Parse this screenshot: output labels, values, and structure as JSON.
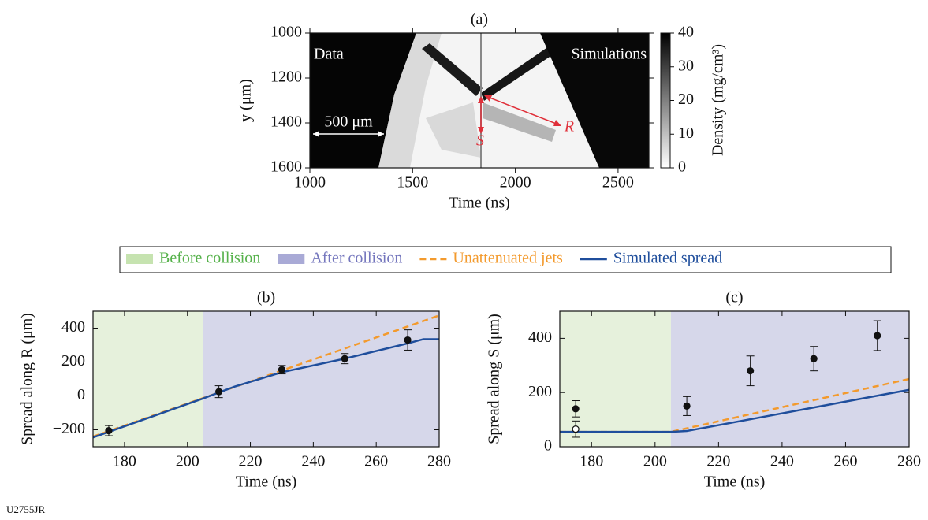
{
  "chart_data": [
    {
      "type": "image",
      "title": "(a)",
      "xlabel": "Time (ns)",
      "ylabel": "y (μm)",
      "xlim": [
        1000,
        2650
      ],
      "xticks": [
        1000,
        1500,
        2000,
        2500
      ],
      "ylim": [
        1600,
        1000
      ],
      "yticks": [
        1000,
        1200,
        1400,
        1600
      ],
      "colorbar": {
        "label": "Density (mg/cm³)",
        "lim": [
          0,
          40
        ],
        "ticks": [
          0,
          10,
          20,
          30,
          40
        ]
      },
      "annotations": [
        "Data",
        "Simulations",
        "500 μm",
        "S",
        "R"
      ]
    },
    {
      "type": "line",
      "title": "(b)",
      "xlabel": "Time (ns)",
      "ylabel": "Spread along R (μm)",
      "xlim": [
        170,
        280
      ],
      "xticks": [
        180,
        200,
        220,
        240,
        260,
        280
      ],
      "ylim": [
        -300,
        500
      ],
      "yticks": [
        {
          "value": -200,
          "label": "−200"
        },
        0,
        200,
        400
      ],
      "regions": [
        {
          "name": "Before collision",
          "from": 170,
          "to": 205,
          "color": "#e6f1dc",
          "swatch": "#c6e3b0",
          "label_color": "#55b14a"
        },
        {
          "name": "After collision",
          "from": 205,
          "to": 280,
          "color": "#d6d7ea",
          "swatch": "#a9aad6",
          "label_color": "#7476bd"
        }
      ],
      "series": [
        {
          "name": "Unattenuated jets",
          "style": "dashed",
          "color": "#f39a2d",
          "x": [
            170,
            280
          ],
          "values": [
            -240,
            475
          ]
        },
        {
          "name": "Simulated spread",
          "style": "solid",
          "color": "#1f4e9c",
          "x": [
            170,
            205,
            215,
            230,
            250,
            270,
            275,
            280
          ],
          "values": [
            -245,
            -15,
            55,
            140,
            220,
            310,
            335,
            335
          ]
        },
        {
          "style": "errorbar",
          "filled": true,
          "color": "#111",
          "x": [
            175,
            210,
            230,
            250,
            270
          ],
          "values": [
            -205,
            25,
            155,
            220,
            330
          ],
          "errors": [
            30,
            35,
            25,
            30,
            60
          ]
        }
      ]
    },
    {
      "type": "line",
      "title": "(c)",
      "xlabel": "Time (ns)",
      "ylabel": "Spread along S (μm)",
      "xlim": [
        170,
        280
      ],
      "xticks": [
        180,
        200,
        220,
        240,
        260,
        280
      ],
      "ylim": [
        0,
        500
      ],
      "yticks": [
        0,
        200,
        400
      ],
      "regions": [
        {
          "from": 170,
          "to": 205,
          "color": "#e6f1dc"
        },
        {
          "from": 205,
          "to": 280,
          "color": "#d6d7ea"
        }
      ],
      "series": [
        {
          "style": "dashed",
          "color": "#f39a2d",
          "x": [
            170,
            205,
            280
          ],
          "values": [
            55,
            55,
            250
          ]
        },
        {
          "style": "solid",
          "color": "#1f4e9c",
          "x": [
            170,
            205,
            210,
            280
          ],
          "values": [
            55,
            55,
            58,
            210
          ]
        },
        {
          "style": "errorbar",
          "filled": true,
          "color": "#111",
          "x": [
            175,
            210,
            230,
            250,
            270
          ],
          "values": [
            140,
            150,
            280,
            325,
            410
          ],
          "errors": [
            30,
            35,
            55,
            45,
            55
          ]
        },
        {
          "style": "errorbar",
          "filled": false,
          "color": "#111",
          "x": [
            175
          ],
          "values": [
            65
          ],
          "errors": [
            30
          ]
        }
      ]
    }
  ],
  "footer": "U2755JR"
}
